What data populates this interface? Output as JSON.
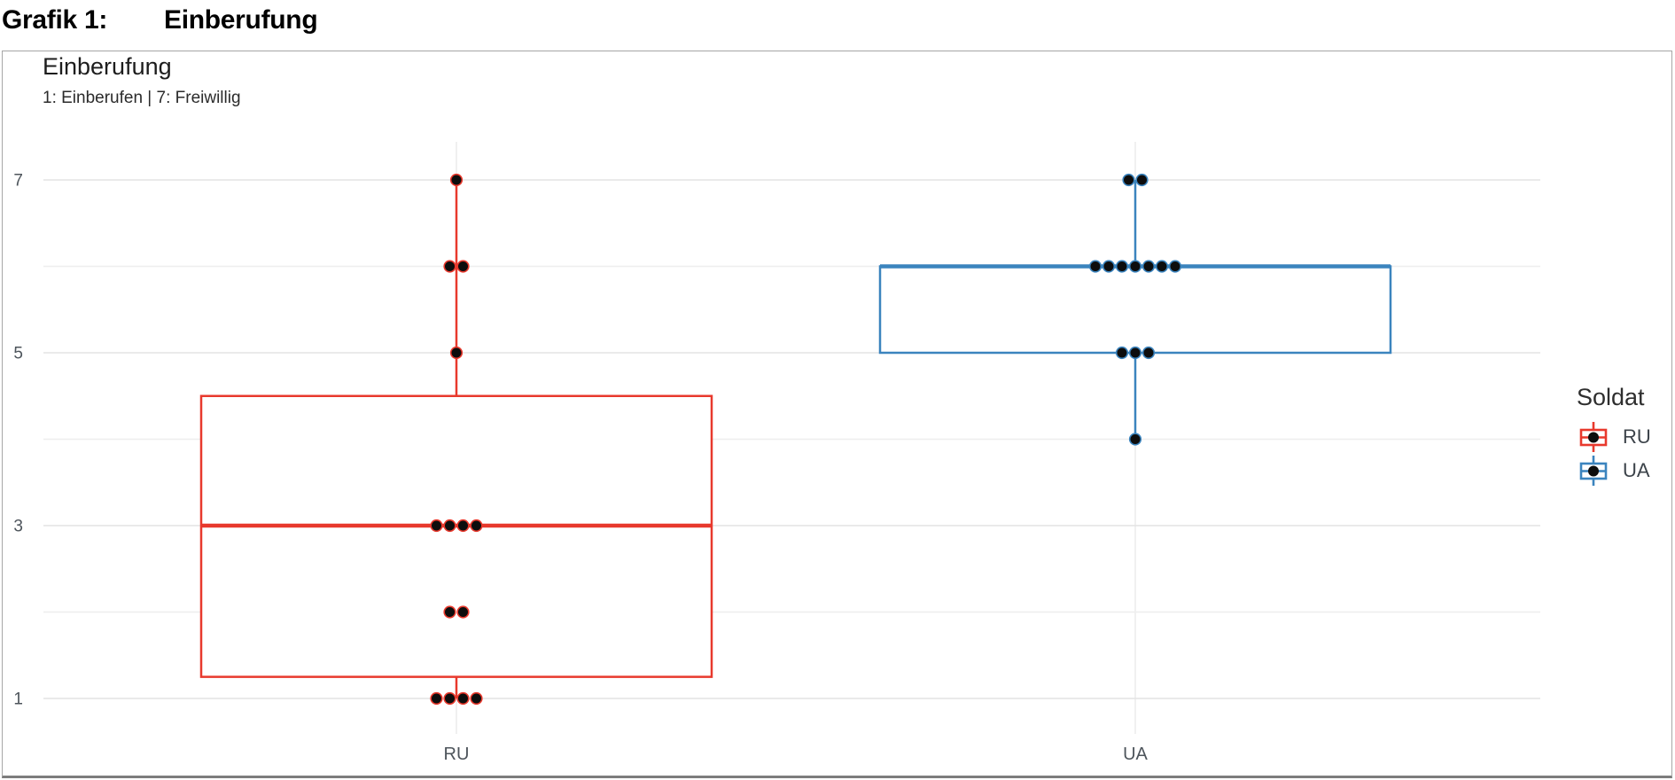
{
  "header": {
    "label": "Grafik 1:",
    "title": "Einberufung"
  },
  "panel": {
    "title": "Einberufung",
    "subtitle": "1: Einberufen | 7: Freiwillig"
  },
  "legend": {
    "title": "Soldat",
    "items": [
      {
        "label": "RU",
        "color": "#e8392d"
      },
      {
        "label": "UA",
        "color": "#3b84be"
      }
    ]
  },
  "chart_data": {
    "type": "boxplot",
    "title": "Einberufung",
    "subtitle": "1: Einberufen | 7: Freiwillig",
    "categories": [
      "RU",
      "UA"
    ],
    "ylim": [
      1,
      7
    ],
    "y_ticks_major": [
      1,
      3,
      5,
      7
    ],
    "y_ticks_minor": [
      2,
      4,
      6
    ],
    "grid": true,
    "legend_title": "Soldat",
    "legend_position": "right",
    "point_color": "#0d0d0d",
    "series": [
      {
        "name": "RU",
        "color": "#e8392d",
        "values": [
          1,
          1,
          1,
          1,
          2,
          2,
          3,
          3,
          3,
          3,
          5,
          6,
          6,
          7
        ],
        "box": {
          "whisker_low": 1,
          "q1": 1.25,
          "median": 3,
          "q3": 4.5,
          "whisker_high": 7
        }
      },
      {
        "name": "UA",
        "color": "#3b84be",
        "values": [
          4,
          5,
          5,
          5,
          6,
          6,
          6,
          6,
          6,
          6,
          6,
          7,
          7
        ],
        "box": {
          "whisker_low": 4,
          "q1": 5,
          "median": 6,
          "q3": 6,
          "whisker_high": 7
        }
      }
    ]
  }
}
